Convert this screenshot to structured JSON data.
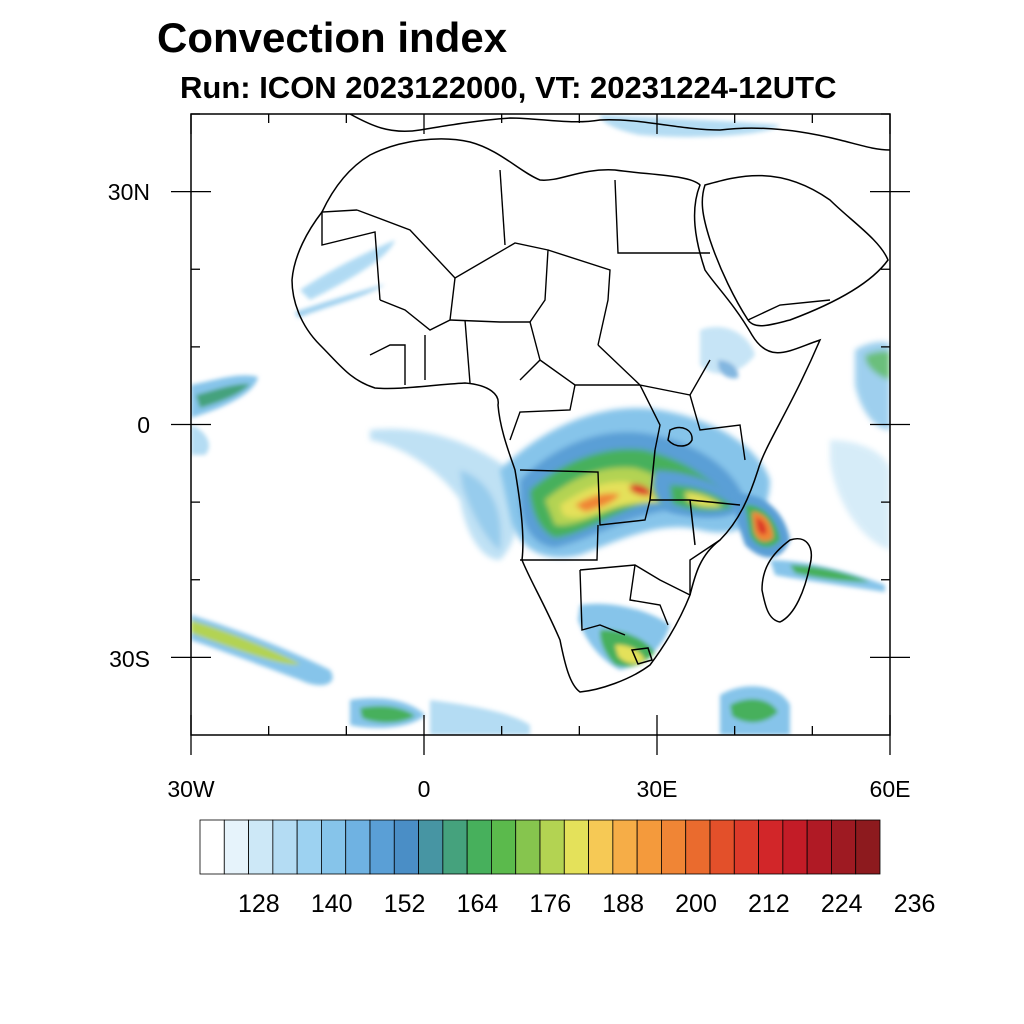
{
  "title": "Convection index",
  "subtitle": "Run: ICON 2023122000,  VT: 20231224-12UTC",
  "map": {
    "lon_range": [
      -30,
      60
    ],
    "lat_range": [
      -40,
      40
    ],
    "lat_labels": [
      "30N",
      "0",
      "30S"
    ],
    "lon_labels": [
      "30W",
      "0",
      "30E",
      "60E"
    ],
    "lat_label_values": [
      30,
      0,
      -30
    ],
    "lon_label_values": [
      -30,
      0,
      30,
      60
    ]
  },
  "colorbar": {
    "tick_labels": [
      "128",
      "140",
      "152",
      "164",
      "176",
      "188",
      "200",
      "212",
      "224",
      "236"
    ],
    "colors": [
      "#ffffff",
      "#e6f3fb",
      "#cde8f7",
      "#b4dcf3",
      "#9dd2f1",
      "#86c4ea",
      "#6fb2e2",
      "#5a9fd6",
      "#4a8ec6",
      "#4795a3",
      "#45a27d",
      "#47b05c",
      "#5bba4c",
      "#86c54e",
      "#b3d352",
      "#e4e15a",
      "#f6c955",
      "#f6ad47",
      "#f49a3c",
      "#f08535",
      "#ea6b2e",
      "#e3502a",
      "#dc3a2a",
      "#d22629",
      "#c31c27",
      "#b01a25",
      "#9e1a22",
      "#8d1a1e"
    ]
  },
  "colors": {
    "low": "#9dd2f1",
    "mid": "#5a9fd6",
    "green": "#47b05c",
    "yellow": "#e4e15a",
    "orange": "#f08535",
    "red": "#dc3a2a"
  }
}
